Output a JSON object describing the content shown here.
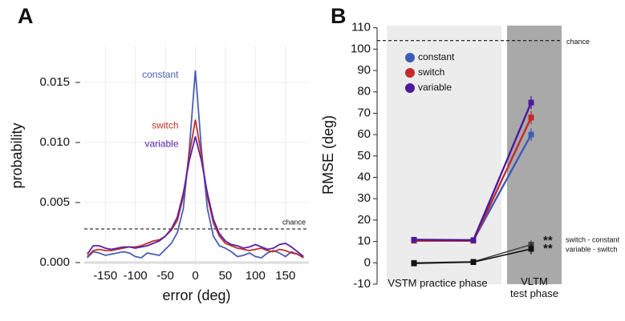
{
  "chart_data": [
    {
      "type": "line",
      "panel_label": "A",
      "xlabel": "error (deg)",
      "ylabel": "probability",
      "x": [
        -180,
        -170,
        -160,
        -150,
        -140,
        -130,
        -120,
        -110,
        -100,
        -90,
        -80,
        -70,
        -60,
        -50,
        -40,
        -30,
        -20,
        -10,
        0,
        10,
        20,
        30,
        40,
        50,
        60,
        70,
        80,
        90,
        100,
        110,
        120,
        130,
        140,
        150,
        160,
        170,
        180
      ],
      "series": [
        {
          "name": "constant",
          "color": "#4a5fb5",
          "values": [
            0.0004,
            0.0009,
            0.0008,
            0.0006,
            0.0007,
            0.0008,
            0.0009,
            0.0008,
            0.0005,
            0.0004,
            0.0008,
            0.0007,
            0.0006,
            0.0011,
            0.0016,
            0.0025,
            0.0045,
            0.0095,
            0.016,
            0.0095,
            0.0045,
            0.0022,
            0.0014,
            0.0012,
            0.0009,
            0.0005,
            0.0006,
            0.0008,
            0.0005,
            0.0004,
            0.0008,
            0.001,
            0.0008,
            0.0005,
            0.0009,
            0.0007,
            0.0004
          ]
        },
        {
          "name": "switch",
          "color": "#c0302a",
          "values": [
            0.0005,
            0.001,
            0.0011,
            0.001,
            0.001,
            0.0011,
            0.0012,
            0.0013,
            0.0013,
            0.0014,
            0.0016,
            0.0018,
            0.0019,
            0.0022,
            0.0027,
            0.0035,
            0.0055,
            0.009,
            0.0119,
            0.009,
            0.0055,
            0.0033,
            0.0022,
            0.0016,
            0.0014,
            0.0012,
            0.0011,
            0.001,
            0.0011,
            0.0012,
            0.001,
            0.0009,
            0.0011,
            0.001,
            0.0008,
            0.0007,
            0.0004
          ]
        },
        {
          "name": "variable",
          "color": "#5a22a8",
          "values": [
            0.0007,
            0.0014,
            0.0014,
            0.0012,
            0.0011,
            0.0012,
            0.0013,
            0.0013,
            0.0012,
            0.0013,
            0.0014,
            0.0016,
            0.0018,
            0.0022,
            0.0028,
            0.0038,
            0.0058,
            0.0085,
            0.0105,
            0.0085,
            0.0058,
            0.0036,
            0.0024,
            0.0018,
            0.0015,
            0.0014,
            0.0012,
            0.0013,
            0.0015,
            0.0013,
            0.0011,
            0.0012,
            0.0015,
            0.0016,
            0.0013,
            0.0009,
            0.0005
          ]
        }
      ],
      "xlim": [
        -185,
        189
      ],
      "ylim": [
        -0.0002,
        0.018
      ],
      "xticks": [
        -150,
        -100,
        -50,
        0,
        50,
        100,
        150
      ],
      "yticks": [
        {
          "value": 0,
          "label": "0.000"
        },
        {
          "value": 0.005,
          "label": "0.005"
        },
        {
          "value": 0.01,
          "label": "0.010"
        },
        {
          "value": 0.015,
          "label": "0.015"
        }
      ],
      "grid": true,
      "reference_line": {
        "value": 0.0028,
        "label": "chance"
      }
    },
    {
      "type": "line",
      "panel_label": "B",
      "ylabel": "RMSE (deg)",
      "phases": [
        "VSTM practice phase",
        "VLTM\ntest phase"
      ],
      "series": [
        {
          "name": "constant",
          "color": "#3d5cb8",
          "values": [
            10.5,
            10.5,
            60
          ],
          "errors": [
            0.8,
            0.8,
            3
          ]
        },
        {
          "name": "switch",
          "color": "#c42a2a",
          "values": [
            10.3,
            10.3,
            68
          ],
          "errors": [
            0.8,
            0.8,
            3
          ]
        },
        {
          "name": "variable",
          "color": "#4b1a9e",
          "values": [
            10.8,
            10.6,
            75
          ],
          "errors": [
            0.8,
            0.8,
            3
          ]
        }
      ],
      "difference_series": [
        {
          "name": "switch - constant",
          "color": "#444444",
          "values": [
            0,
            0.5,
            8.5
          ],
          "errors": [
            0.5,
            0.5,
            2
          ],
          "annotation": "**"
        },
        {
          "name": "variable - switch",
          "color": "#111111",
          "values": [
            -0.3,
            0.3,
            6.5
          ],
          "errors": [
            0.5,
            0.5,
            2.5
          ],
          "annotation": "**"
        }
      ],
      "ylim": [
        -10,
        111
      ],
      "yticks": [
        -10,
        0,
        10,
        20,
        30,
        40,
        50,
        60,
        70,
        80,
        90,
        100,
        110
      ],
      "reference_line": {
        "value": 104,
        "label": "chance"
      }
    }
  ]
}
